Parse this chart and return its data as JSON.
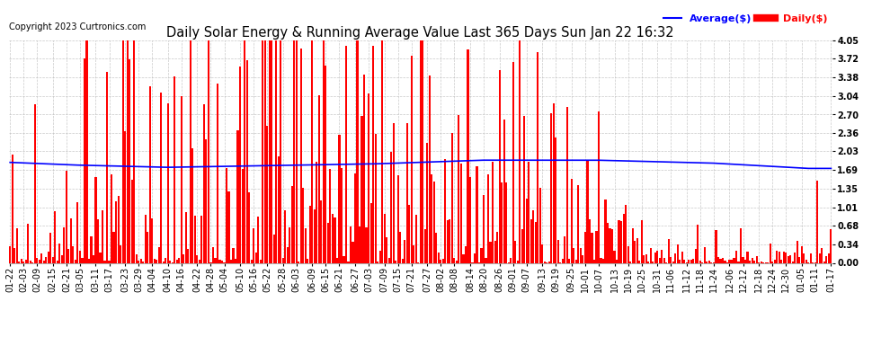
{
  "title": "Daily Solar Energy & Running Average Value Last 365 Days Sun Jan 22 16:32",
  "copyright": "Copyright 2023 Curtronics.com",
  "legend_avg": "Average($)",
  "legend_daily": "Daily($)",
  "avg_color": "#0000ff",
  "daily_color": "#ff0000",
  "ylim": [
    0.0,
    4.05
  ],
  "yticks": [
    0.0,
    0.34,
    0.68,
    1.01,
    1.35,
    1.69,
    2.03,
    2.36,
    2.7,
    3.04,
    3.38,
    3.72,
    4.05
  ],
  "background_color": "#ffffff",
  "grid_color": "#bbbbbb",
  "title_fontsize": 10.5,
  "copyright_fontsize": 7,
  "tick_fontsize": 7,
  "legend_fontsize": 8,
  "figsize": [
    9.9,
    3.75
  ],
  "dpi": 100,
  "x_labels": [
    "01-22",
    "02-03",
    "02-09",
    "02-15",
    "02-21",
    "03-05",
    "03-11",
    "03-17",
    "03-23",
    "03-29",
    "04-04",
    "04-10",
    "04-16",
    "04-22",
    "04-28",
    "05-04",
    "05-10",
    "05-16",
    "05-22",
    "05-28",
    "06-03",
    "06-09",
    "06-15",
    "06-21",
    "06-27",
    "07-03",
    "07-09",
    "07-15",
    "07-21",
    "07-27",
    "08-02",
    "08-08",
    "08-14",
    "08-20",
    "08-26",
    "09-01",
    "09-07",
    "09-13",
    "09-19",
    "09-25",
    "10-01",
    "10-07",
    "10-13",
    "10-19",
    "10-25",
    "10-31",
    "11-06",
    "11-12",
    "11-18",
    "11-24",
    "12-06",
    "12-12",
    "12-18",
    "12-24",
    "12-30",
    "01-05",
    "01-11",
    "01-17"
  ],
  "avg_values": [
    1.83,
    1.82,
    1.82,
    1.82,
    1.81,
    1.81,
    1.8,
    1.8,
    1.8,
    1.79,
    1.79,
    1.79,
    1.78,
    1.78,
    1.77,
    1.77,
    1.77,
    1.76,
    1.76,
    1.76,
    1.75,
    1.75,
    1.75,
    1.74,
    1.74,
    1.74,
    1.74,
    1.74,
    1.74,
    1.74,
    1.74,
    1.74,
    1.74,
    1.74,
    1.74,
    1.74,
    1.74,
    1.75,
    1.75,
    1.75,
    1.75,
    1.75,
    1.75,
    1.76,
    1.76,
    1.76,
    1.77,
    1.77,
    1.77,
    1.78,
    1.78,
    1.79,
    1.79,
    1.8,
    1.8,
    1.81,
    1.81,
    1.82,
    1.82,
    1.83,
    1.83,
    1.83,
    1.84,
    1.84,
    1.84,
    1.85,
    1.85,
    1.85,
    1.85,
    1.86,
    1.86,
    1.86,
    1.86,
    1.86,
    1.86,
    1.86,
    1.86,
    1.87,
    1.87,
    1.87,
    1.87,
    1.87,
    1.87,
    1.87,
    1.87,
    1.87,
    1.87,
    1.87,
    1.87,
    1.87,
    1.87,
    1.87,
    1.87,
    1.87,
    1.87,
    1.87,
    1.87,
    1.87,
    1.87,
    1.87,
    1.87,
    1.87,
    1.87,
    1.87,
    1.87,
    1.87,
    1.87,
    1.87,
    1.87,
    1.86,
    1.86,
    1.86,
    1.86,
    1.86,
    1.86,
    1.85,
    1.85,
    1.85,
    1.85,
    1.85,
    1.85,
    1.85,
    1.85,
    1.85,
    1.85,
    1.85,
    1.85,
    1.85,
    1.84,
    1.84,
    1.84,
    1.84,
    1.84,
    1.83,
    1.83,
    1.83,
    1.83,
    1.83,
    1.82,
    1.82,
    1.82,
    1.82,
    1.81,
    1.81,
    1.81,
    1.8,
    1.8,
    1.8,
    1.79,
    1.79,
    1.79,
    1.78,
    1.78,
    1.77,
    1.77,
    1.76,
    1.76,
    1.76,
    1.75,
    1.75,
    1.75,
    1.74,
    1.74,
    1.74,
    1.73,
    1.73,
    1.73,
    1.72,
    1.72,
    1.72,
    1.72,
    1.72,
    1.72,
    1.72,
    1.72,
    1.72,
    1.72,
    1.72,
    1.72,
    1.72,
    1.72,
    1.72,
    1.72,
    1.72,
    1.72,
    1.72,
    1.72,
    1.72,
    1.72,
    1.72,
    1.72,
    1.72,
    1.72,
    1.72,
    1.72,
    1.72,
    1.72,
    1.72,
    1.72,
    1.72
  ]
}
